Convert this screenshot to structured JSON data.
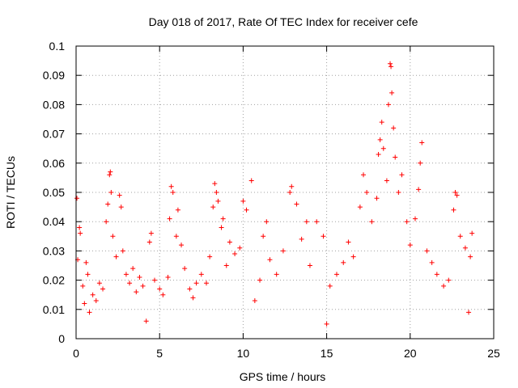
{
  "chart_data": {
    "type": "scatter",
    "title": "Day 018 of 2017, Rate Of TEC Index for receiver cefe",
    "xlabel": "GPS time / hours",
    "ylabel": "ROTI / TECUs",
    "xlim": [
      0,
      25
    ],
    "ylim": [
      0,
      0.1
    ],
    "xticks": [
      0,
      5,
      10,
      15,
      20,
      25
    ],
    "xtick_labels": [
      "0",
      "5",
      "10",
      "15",
      "20",
      "25"
    ],
    "yticks": [
      0,
      0.01,
      0.02,
      0.03,
      0.04,
      0.05,
      0.06,
      0.07,
      0.08,
      0.09,
      0.1
    ],
    "ytick_labels": [
      "0",
      "0.01",
      "0.02",
      "0.03",
      "0.04",
      "0.05",
      "0.06",
      "0.07",
      "0.08",
      "0.09",
      "0.1"
    ],
    "grid": true,
    "marker": "+",
    "series_color": "#ff0000",
    "x_data_range": [
      0,
      23.7
    ],
    "series": [
      {
        "name": "ROTI",
        "points": [
          [
            0.05,
            0.048
          ],
          [
            0.1,
            0.027
          ],
          [
            0.2,
            0.038
          ],
          [
            0.25,
            0.036
          ],
          [
            0.4,
            0.018
          ],
          [
            0.5,
            0.012
          ],
          [
            0.6,
            0.026
          ],
          [
            0.7,
            0.022
          ],
          [
            0.8,
            0.009
          ],
          [
            1.0,
            0.015
          ],
          [
            1.2,
            0.013
          ],
          [
            1.4,
            0.019
          ],
          [
            1.6,
            0.017
          ],
          [
            1.8,
            0.04
          ],
          [
            1.9,
            0.046
          ],
          [
            2.0,
            0.056
          ],
          [
            2.05,
            0.057
          ],
          [
            2.1,
            0.05
          ],
          [
            2.2,
            0.035
          ],
          [
            2.4,
            0.028
          ],
          [
            2.6,
            0.049
          ],
          [
            2.7,
            0.045
          ],
          [
            2.8,
            0.03
          ],
          [
            3.0,
            0.022
          ],
          [
            3.2,
            0.019
          ],
          [
            3.4,
            0.024
          ],
          [
            3.6,
            0.016
          ],
          [
            3.8,
            0.021
          ],
          [
            4.0,
            0.018
          ],
          [
            4.2,
            0.006
          ],
          [
            4.4,
            0.033
          ],
          [
            4.5,
            0.036
          ],
          [
            4.7,
            0.02
          ],
          [
            5.0,
            0.017
          ],
          [
            5.2,
            0.015
          ],
          [
            5.5,
            0.021
          ],
          [
            5.6,
            0.041
          ],
          [
            5.7,
            0.052
          ],
          [
            5.8,
            0.05
          ],
          [
            6.0,
            0.035
          ],
          [
            6.1,
            0.044
          ],
          [
            6.3,
            0.032
          ],
          [
            6.5,
            0.024
          ],
          [
            6.8,
            0.017
          ],
          [
            7.0,
            0.014
          ],
          [
            7.2,
            0.019
          ],
          [
            7.5,
            0.022
          ],
          [
            7.8,
            0.019
          ],
          [
            8.0,
            0.028
          ],
          [
            8.2,
            0.045
          ],
          [
            8.3,
            0.053
          ],
          [
            8.4,
            0.05
          ],
          [
            8.5,
            0.047
          ],
          [
            8.7,
            0.038
          ],
          [
            8.8,
            0.041
          ],
          [
            9.0,
            0.025
          ],
          [
            9.2,
            0.033
          ],
          [
            9.5,
            0.029
          ],
          [
            9.8,
            0.031
          ],
          [
            10.0,
            0.047
          ],
          [
            10.2,
            0.044
          ],
          [
            10.5,
            0.054
          ],
          [
            10.7,
            0.013
          ],
          [
            11.0,
            0.02
          ],
          [
            11.2,
            0.035
          ],
          [
            11.4,
            0.04
          ],
          [
            11.6,
            0.027
          ],
          [
            12.0,
            0.022
          ],
          [
            12.4,
            0.03
          ],
          [
            12.8,
            0.05
          ],
          [
            12.9,
            0.052
          ],
          [
            13.2,
            0.046
          ],
          [
            13.5,
            0.034
          ],
          [
            13.8,
            0.04
          ],
          [
            14.0,
            0.025
          ],
          [
            14.4,
            0.04
          ],
          [
            14.8,
            0.035
          ],
          [
            15.0,
            0.005
          ],
          [
            15.2,
            0.018
          ],
          [
            15.6,
            0.022
          ],
          [
            16.0,
            0.026
          ],
          [
            16.3,
            0.033
          ],
          [
            16.6,
            0.028
          ],
          [
            17.0,
            0.045
          ],
          [
            17.2,
            0.056
          ],
          [
            17.4,
            0.05
          ],
          [
            17.7,
            0.04
          ],
          [
            18.0,
            0.048
          ],
          [
            18.1,
            0.063
          ],
          [
            18.2,
            0.068
          ],
          [
            18.3,
            0.074
          ],
          [
            18.4,
            0.065
          ],
          [
            18.6,
            0.054
          ],
          [
            18.7,
            0.08
          ],
          [
            18.8,
            0.094
          ],
          [
            18.85,
            0.093
          ],
          [
            18.9,
            0.084
          ],
          [
            19.0,
            0.072
          ],
          [
            19.1,
            0.062
          ],
          [
            19.3,
            0.05
          ],
          [
            19.5,
            0.056
          ],
          [
            19.8,
            0.04
          ],
          [
            20.0,
            0.032
          ],
          [
            20.3,
            0.041
          ],
          [
            20.5,
            0.051
          ],
          [
            20.6,
            0.06
          ],
          [
            20.7,
            0.067
          ],
          [
            21.0,
            0.03
          ],
          [
            21.3,
            0.026
          ],
          [
            21.6,
            0.022
          ],
          [
            22.0,
            0.018
          ],
          [
            22.3,
            0.02
          ],
          [
            22.6,
            0.044
          ],
          [
            22.7,
            0.05
          ],
          [
            22.8,
            0.049
          ],
          [
            23.0,
            0.035
          ],
          [
            23.3,
            0.031
          ],
          [
            23.5,
            0.009
          ],
          [
            23.6,
            0.028
          ],
          [
            23.7,
            0.036
          ]
        ]
      }
    ]
  }
}
